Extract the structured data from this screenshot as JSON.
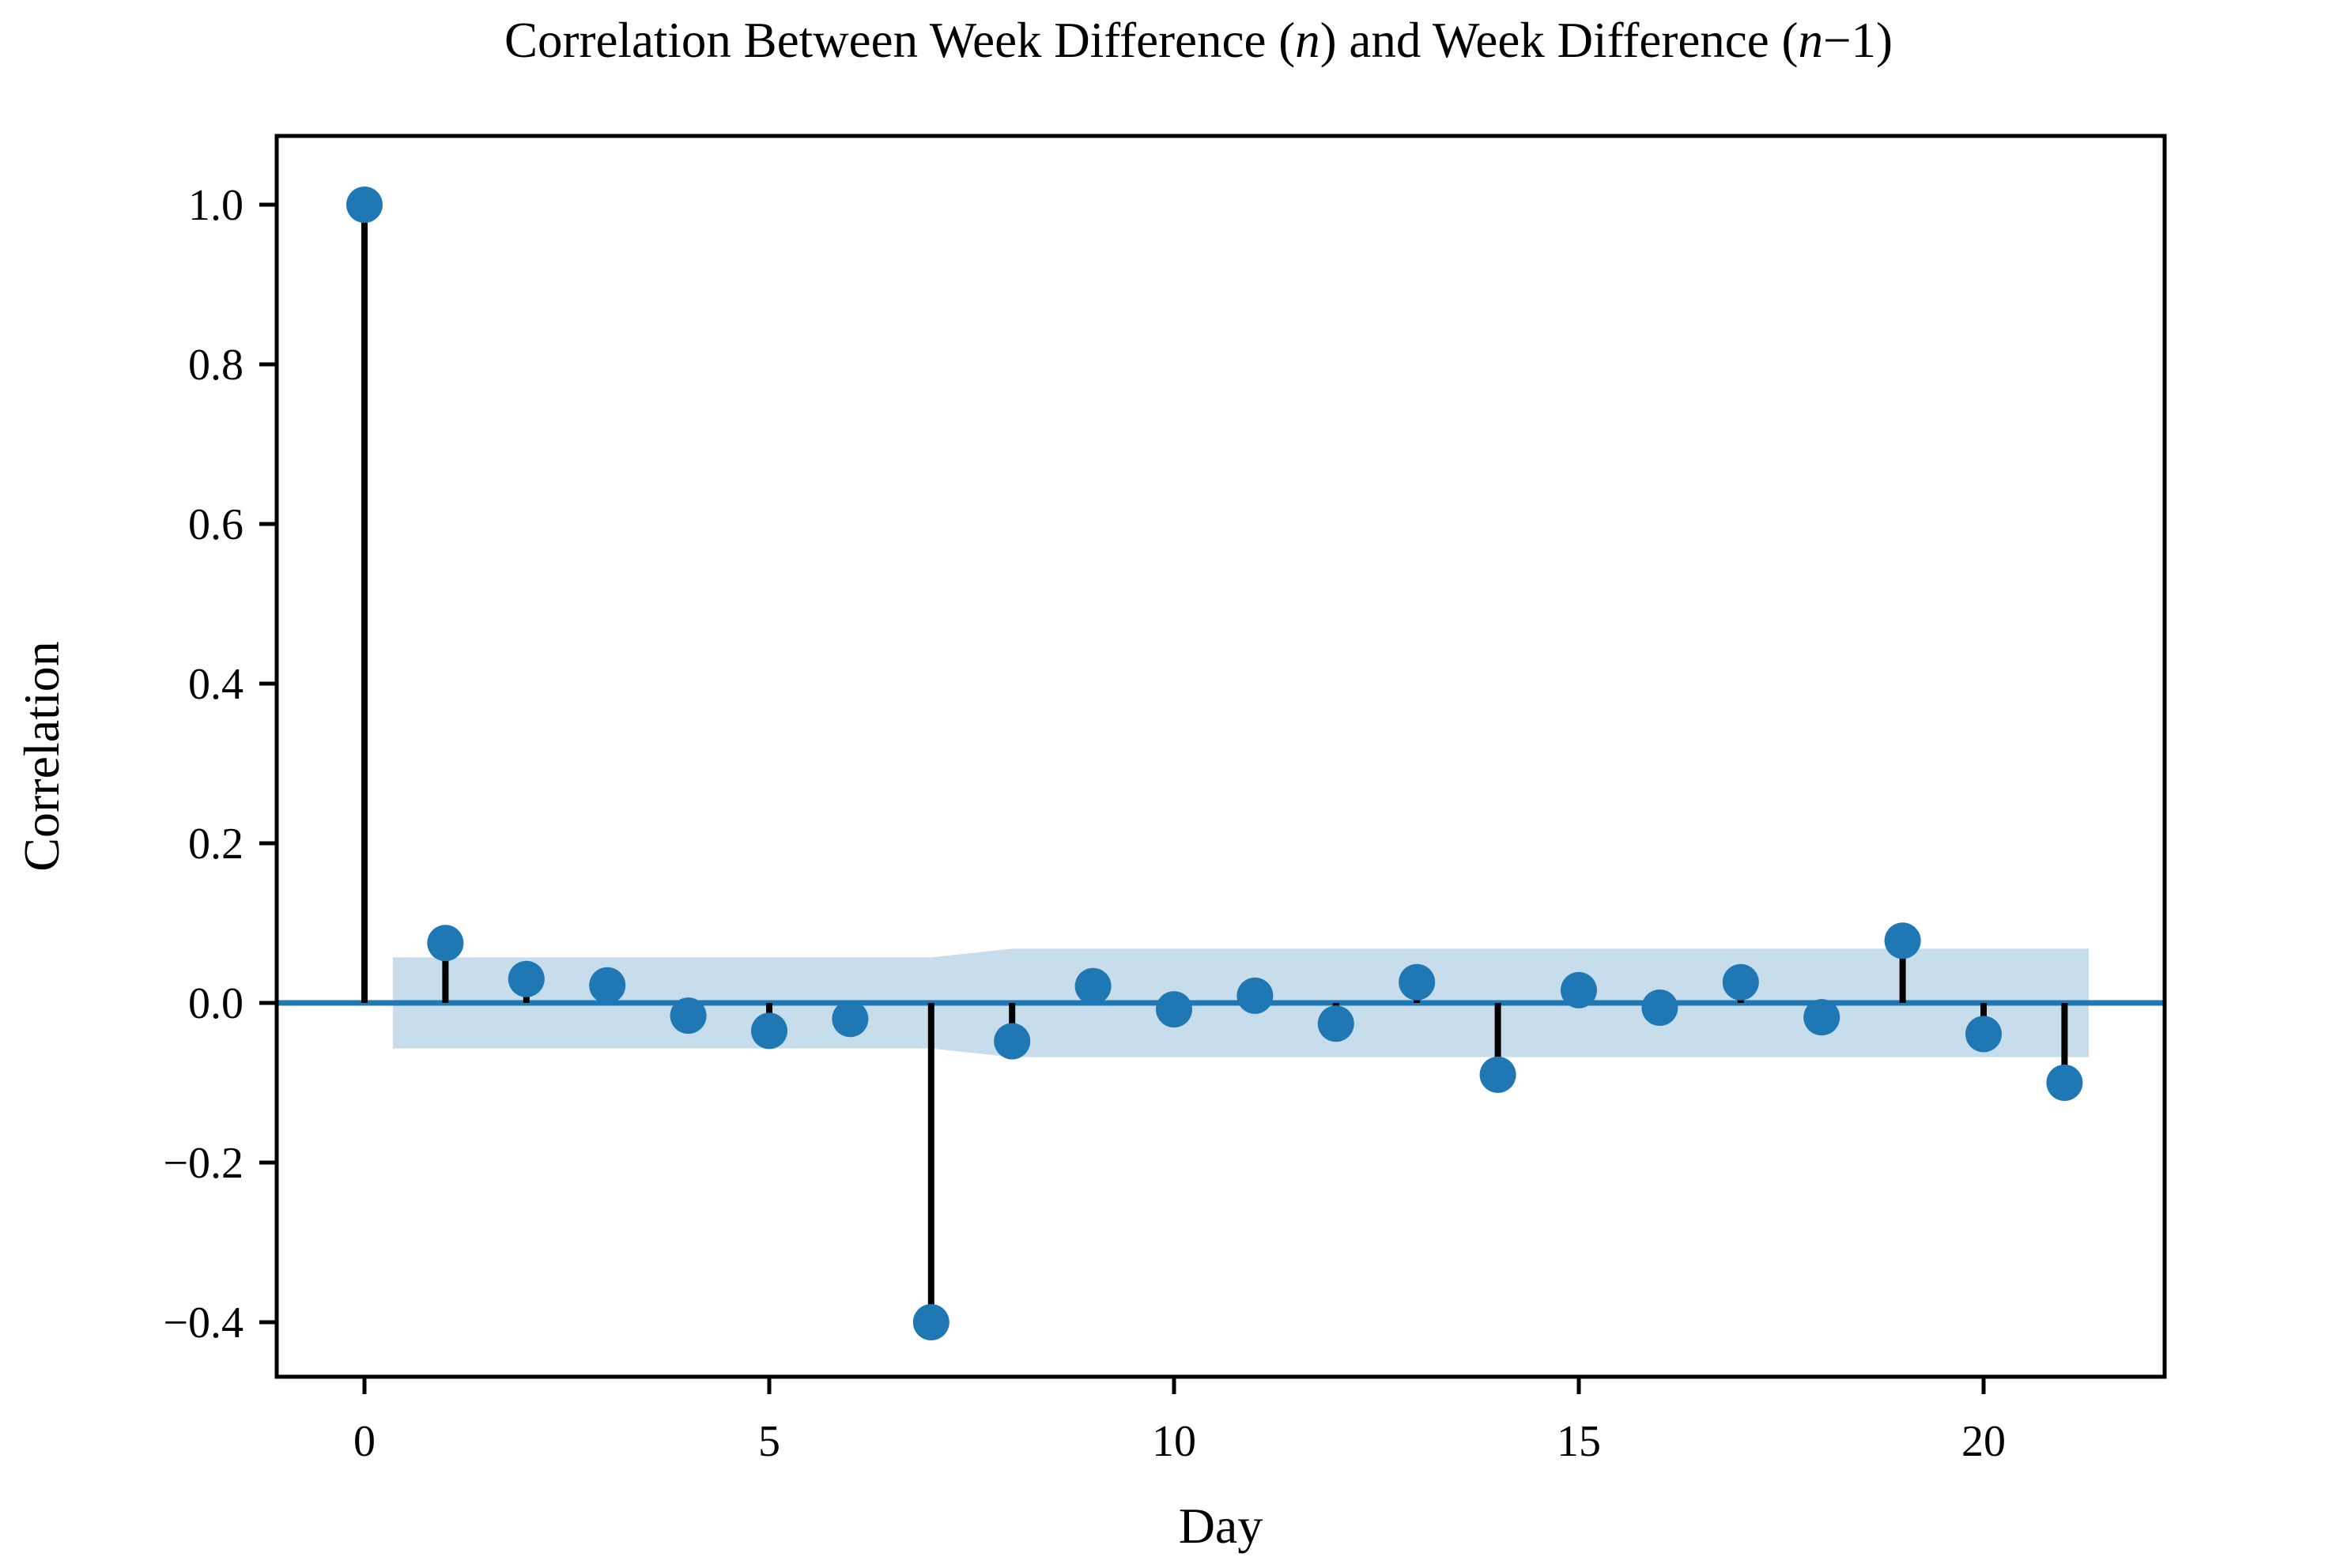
{
  "chart_data": {
    "type": "stem",
    "subtype": "autocorrelation",
    "title": "Correlation Between Week Difference (n) and Week Difference (n−1)",
    "title_parts": [
      {
        "text": "Correlation Between Week Difference (",
        "style": "normal"
      },
      {
        "text": "n",
        "style": "italic"
      },
      {
        "text": ") and Week Difference (",
        "style": "normal"
      },
      {
        "text": "n",
        "style": "italic"
      },
      {
        "text": "−1)",
        "style": "normal"
      }
    ],
    "xlabel": "Day",
    "ylabel": "Correlation",
    "x": [
      0,
      1,
      2,
      3,
      4,
      5,
      6,
      7,
      8,
      9,
      10,
      11,
      12,
      13,
      14,
      15,
      16,
      17,
      18,
      19,
      20,
      21
    ],
    "values": [
      1.0,
      0.075,
      0.03,
      0.022,
      -0.016,
      -0.035,
      -0.02,
      -0.4,
      -0.048,
      0.021,
      -0.008,
      0.009,
      -0.026,
      0.026,
      -0.09,
      0.016,
      -0.006,
      0.026,
      -0.018,
      0.078,
      -0.039,
      -0.1
    ],
    "xticks": {
      "values": [
        0,
        5,
        10,
        15,
        20
      ],
      "labels": [
        "0",
        "5",
        "10",
        "15",
        "20"
      ]
    },
    "yticks": {
      "values": [
        1.0,
        0.8,
        0.6,
        0.4,
        0.2,
        0.0,
        -0.2,
        -0.4
      ],
      "labels": [
        "1.0",
        "0.8",
        "0.6",
        "0.4",
        "0.2",
        "0.0",
        "−0.2",
        "−0.4"
      ]
    },
    "xlim": [
      -1.08,
      22.24
    ],
    "ylim": [
      -0.468,
      1.086
    ],
    "zero_line": 0.0,
    "grid": false,
    "legend": null,
    "confidence_band": {
      "description": "shaded confidence interval around zero",
      "segments": [
        {
          "from_lag": 0.35,
          "to_lag": 7.0,
          "half_width": 0.057
        },
        {
          "from_lag": 8.0,
          "to_lag": 21.3,
          "half_width": 0.068
        }
      ]
    },
    "colors": {
      "marker": "#1f77b4",
      "stem": "#000000",
      "zero_line": "#1f77b4",
      "band": "#c7ddec",
      "spine": "#000000",
      "text": "#000000",
      "background": "#ffffff"
    }
  }
}
